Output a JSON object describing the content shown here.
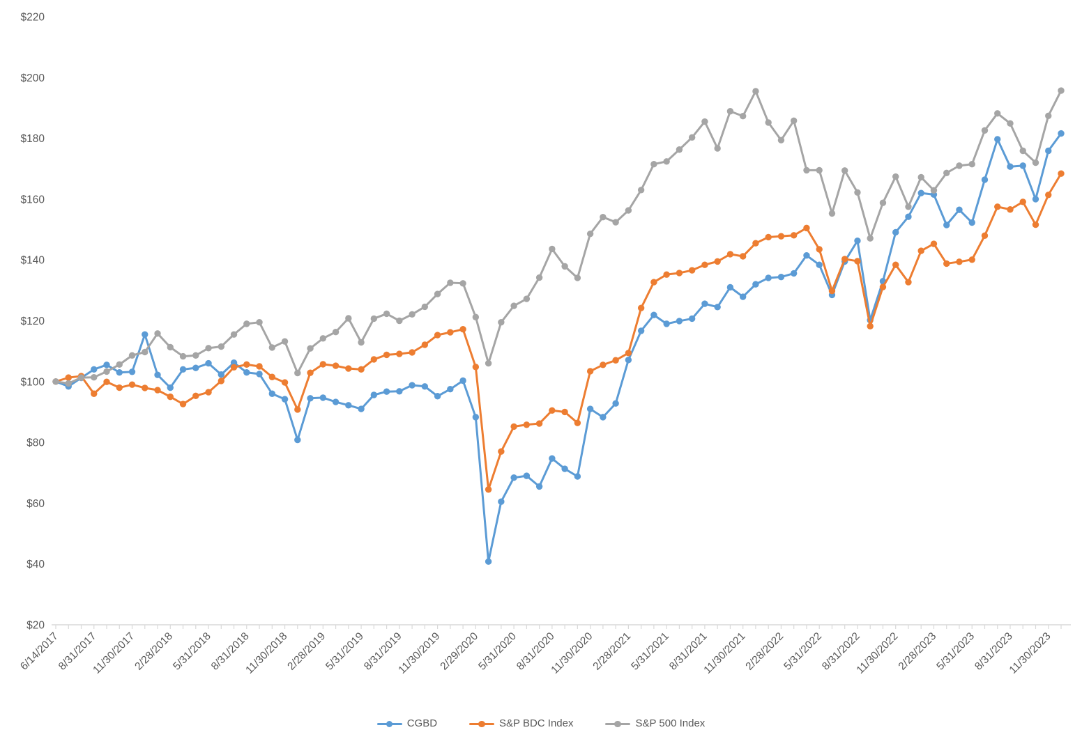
{
  "page": {
    "background_color": "#ffffff",
    "axis_color": "#d9d9d9",
    "label_color": "#595959"
  },
  "chart_data": {
    "type": "line",
    "title": "",
    "xlabel": "",
    "ylabel": "",
    "ylim": [
      20,
      220
    ],
    "y_tick_step": 20,
    "y_tick_prefix": "$",
    "y_tick_labels": [
      "$20",
      "$40",
      "$60",
      "$80",
      "$100",
      "$120",
      "$140",
      "$160",
      "$180",
      "$200",
      "$220"
    ],
    "grid": false,
    "legend_position": "bottom",
    "marker": "circle",
    "x_label_every": 3,
    "x": [
      "6/14/2017",
      "6/30/2017",
      "7/31/2017",
      "8/31/2017",
      "9/30/2017",
      "10/31/2017",
      "11/30/2017",
      "12/31/2017",
      "1/31/2018",
      "2/28/2018",
      "3/31/2018",
      "4/30/2018",
      "5/31/2018",
      "6/30/2018",
      "7/31/2018",
      "8/31/2018",
      "9/30/2018",
      "10/31/2018",
      "11/30/2018",
      "12/31/2018",
      "1/31/2019",
      "2/28/2019",
      "3/31/2019",
      "4/30/2019",
      "5/31/2019",
      "6/30/2019",
      "7/31/2019",
      "8/31/2019",
      "9/30/2019",
      "10/31/2019",
      "11/30/2019",
      "12/31/2019",
      "1/31/2020",
      "2/29/2020",
      "3/31/2020",
      "4/30/2020",
      "5/31/2020",
      "6/30/2020",
      "7/31/2020",
      "8/31/2020",
      "9/30/2020",
      "10/31/2020",
      "11/30/2020",
      "12/31/2020",
      "1/31/2021",
      "2/28/2021",
      "3/31/2021",
      "4/30/2021",
      "5/31/2021",
      "6/30/2021",
      "7/31/2021",
      "8/31/2021",
      "9/30/2021",
      "10/31/2021",
      "11/30/2021",
      "12/31/2021",
      "1/31/2022",
      "2/28/2022",
      "3/31/2022",
      "4/30/2022",
      "5/31/2022",
      "6/30/2022",
      "7/31/2022",
      "8/31/2022",
      "9/30/2022",
      "10/31/2022",
      "11/30/2022",
      "12/31/2022",
      "1/31/2023",
      "2/28/2023",
      "3/31/2023",
      "4/30/2023",
      "5/31/2023",
      "6/30/2023",
      "7/31/2023",
      "8/31/2023",
      "9/30/2023",
      "10/31/2023",
      "11/30/2023",
      "12/31/2023"
    ],
    "x_tick_labels": [
      "6/14/2017",
      "8/31/2017",
      "11/30/2017",
      "2/28/2018",
      "5/31/2018",
      "8/31/2018",
      "11/30/2018",
      "2/28/2019",
      "5/31/2019",
      "8/31/2019",
      "11/30/2019",
      "2/29/2020",
      "5/31/2020",
      "8/31/2020",
      "11/30/2020",
      "2/28/2021",
      "5/31/2021",
      "8/31/2021",
      "11/30/2021",
      "2/28/2022",
      "5/31/2022",
      "8/31/2022",
      "11/30/2022",
      "2/28/2023",
      "5/31/2023",
      "8/31/2023",
      "11/30/2023"
    ],
    "series": [
      {
        "name": "CGBD",
        "color": "#5B9BD5",
        "values": [
          100,
          98.4,
          101.2,
          104,
          105.5,
          103,
          103.2,
          115.5,
          102.2,
          98,
          104,
          104.5,
          106,
          102.3,
          106.2,
          103,
          102.5,
          96,
          94.2,
          80.8,
          94.5,
          94.7,
          93.3,
          92.2,
          91,
          95.6,
          96.7,
          96.8,
          98.8,
          98.4,
          95.2,
          97.5,
          100.3,
          88.3,
          40.8,
          60.5,
          68.4,
          69,
          65.5,
          74.7,
          71.3,
          68.8,
          91,
          88.3,
          92.8,
          107.1,
          116.7,
          121.9,
          119,
          119.9,
          120.7,
          125.6,
          124.5,
          131,
          127.9,
          132,
          134.1,
          134.4,
          135.6,
          141.5,
          138.4,
          128.5,
          139.5,
          146.3,
          120.2,
          133,
          149.1,
          154.2,
          162,
          161.5,
          151.5,
          156.5,
          152.3,
          166.4,
          179.7,
          170.7,
          171,
          160,
          175.9,
          181.6
        ]
      },
      {
        "name": "S&P BDC Index",
        "color": "#ED7D31",
        "values": [
          100,
          101.3,
          101.8,
          96,
          99.9,
          98,
          99,
          97.9,
          97.2,
          95,
          92.6,
          95.3,
          96.5,
          100.2,
          104.7,
          105.6,
          105,
          101.5,
          99.7,
          90.8,
          102.9,
          105.7,
          105.2,
          104.3,
          104,
          107.3,
          108.8,
          109.1,
          109.6,
          112.1,
          115.3,
          116.2,
          117.2,
          104.8,
          64.5,
          77,
          85.2,
          85.8,
          86.2,
          90.5,
          90,
          86.4,
          103.4,
          105.5,
          107,
          109.4,
          124.2,
          132.7,
          135.2,
          135.7,
          136.6,
          138.4,
          139.5,
          141.9,
          141.2,
          145.5,
          147.5,
          147.8,
          148.1,
          150.5,
          143.5,
          129.8,
          140.3,
          139.6,
          118.2,
          131.1,
          138.4,
          132.7,
          143,
          145.3,
          138.8,
          139.4,
          140.1,
          148,
          157.5,
          156.6,
          159.1,
          151.6,
          161.4,
          168.4
        ]
      },
      {
        "name": "S&P 500 Index",
        "color": "#A5A5A5",
        "values": [
          100,
          99.4,
          101.3,
          101.4,
          103.3,
          105.6,
          108.6,
          109.7,
          115.8,
          111.3,
          108.3,
          108.6,
          111,
          111.5,
          115.5,
          119,
          119.5,
          111.2,
          113.2,
          102.8,
          110.9,
          114.2,
          116.3,
          120.8,
          112.9,
          120.7,
          122.3,
          120,
          122.1,
          124.6,
          128.8,
          132.5,
          132.3,
          121.2,
          106,
          119.5,
          124.9,
          127.2,
          134.2,
          143.6,
          137.9,
          134.1,
          148.6,
          154.1,
          152.4,
          156.3,
          163,
          171.5,
          172.4,
          176.3,
          180.3,
          185.5,
          176.7,
          188.9,
          187.3,
          195.5,
          185.2,
          179.4,
          185.8,
          169.5,
          169.5,
          155.3,
          169.4,
          162.2,
          147.1,
          158.8,
          167.4,
          157.5,
          167.2,
          162.9,
          168.6,
          171,
          171.5,
          182.6,
          188.2,
          184.9,
          175.9,
          172,
          187.4,
          195.7
        ]
      }
    ]
  }
}
